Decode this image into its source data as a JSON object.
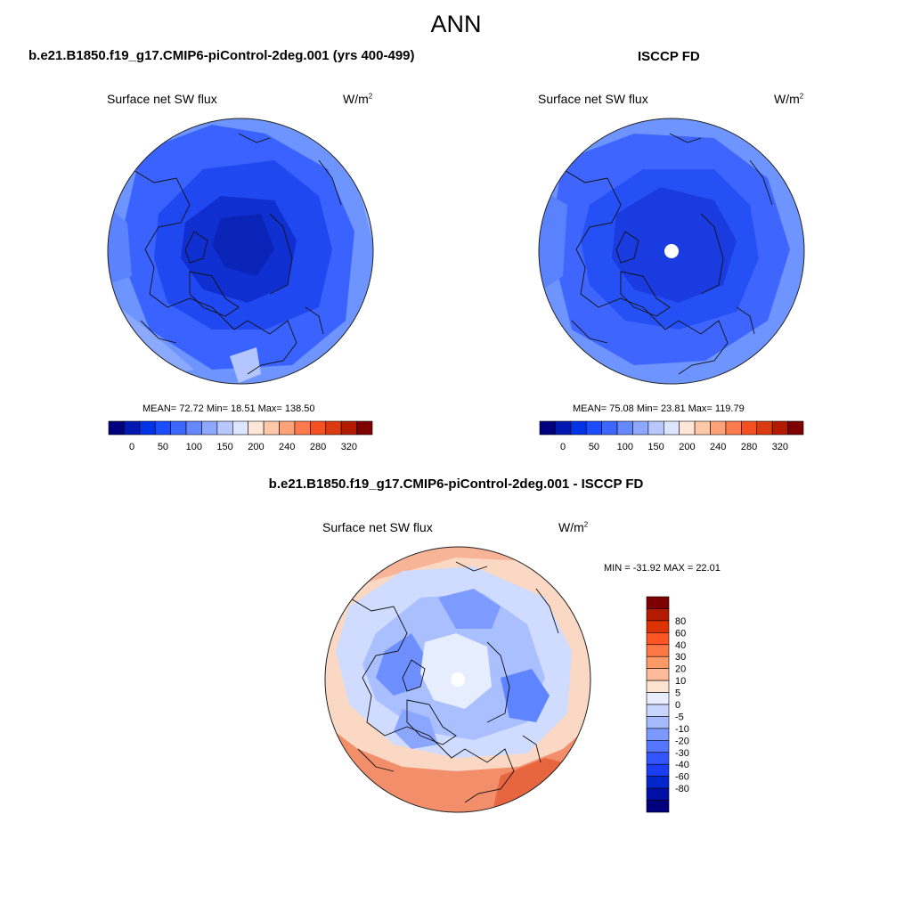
{
  "page": {
    "season": "ANN",
    "left_case": "b.e21.B1850.f19_g17.CMIP6-piControl-2deg.001 (yrs 400-499)",
    "right_case": "ISCCP FD",
    "diff_title": "b.e21.B1850.f19_g17.CMIP6-piControl-2deg.001 - ISCCP FD"
  },
  "panels": {
    "model": {
      "variable": "Surface net SW flux",
      "units_base": "W/m",
      "units_exp": "2",
      "stats": "MEAN=  72.72  Min=  18.51  Max= 138.50"
    },
    "obs": {
      "variable": "Surface net SW flux",
      "units_base": "W/m",
      "units_exp": "2",
      "stats": "MEAN=  75.08  Min=  23.81  Max= 119.79"
    },
    "diff": {
      "variable": "Surface net SW flux",
      "units_base": "W/m",
      "units_exp": "2",
      "stats": "MIN = -31.92 MAX =  22.01"
    }
  },
  "colorbars": {
    "main": {
      "colors": [
        "#00007f",
        "#0019b3",
        "#0033e6",
        "#1a4dff",
        "#3d66ff",
        "#6688ff",
        "#8fa8ff",
        "#b8c8ff",
        "#dde6ff",
        "#ffe6d6",
        "#ffc8a8",
        "#ffa27a",
        "#ff7a4d",
        "#f55020",
        "#d93a10",
        "#b31a00",
        "#7f0000"
      ],
      "tick_labels": [
        "0",
        "50",
        "100",
        "150",
        "200",
        "240",
        "280",
        "320"
      ],
      "tick_positions": [
        1,
        3,
        5,
        7,
        9,
        11,
        13,
        15
      ]
    },
    "diff": {
      "colors": [
        "#7f0000",
        "#b31a00",
        "#dd3300",
        "#ff5522",
        "#ff7744",
        "#ff9966",
        "#ffbb99",
        "#fde4d0",
        "#e8eeff",
        "#c8d6ff",
        "#a6bbff",
        "#7a9aff",
        "#5577ff",
        "#3355ff",
        "#1a3df2",
        "#0026cc",
        "#0010a6",
        "#00007f"
      ],
      "tick_labels": [
        "80",
        "60",
        "40",
        "30",
        "20",
        "10",
        "5",
        "0",
        "-5",
        "-10",
        "-20",
        "-30",
        "-40",
        "-60",
        "-80"
      ]
    }
  }
}
